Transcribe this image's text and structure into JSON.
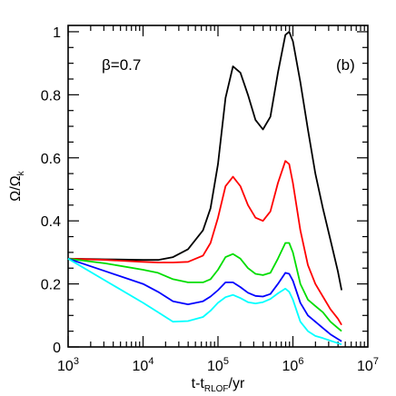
{
  "chart_data": {
    "type": "line",
    "title": "",
    "xlabel": "t-t_RLOF/yr",
    "ylabel": "Ω/Ω_k",
    "xscale": "log",
    "xlim": [
      1000,
      10000000
    ],
    "ylim": [
      0,
      1.02
    ],
    "annotations": [
      "β=0.7",
      "(b)"
    ],
    "grid": false,
    "x": [
      1000,
      3162,
      10000,
      15849,
      25119,
      39811,
      63096,
      79433,
      100000,
      125893,
      158489,
      199526,
      251189,
      316228,
      398107,
      501187,
      630957,
      794328,
      891251,
      1000000,
      1258925,
      1584893,
      1995262,
      2511886,
      3162278,
      3981072,
      4466836
    ],
    "series": [
      {
        "color": "#000000",
        "values": [
          0.28,
          0.278,
          0.276,
          0.276,
          0.285,
          0.31,
          0.37,
          0.44,
          0.58,
          0.79,
          0.89,
          0.87,
          0.8,
          0.72,
          0.69,
          0.73,
          0.87,
          0.99,
          1.0,
          0.97,
          0.84,
          0.69,
          0.55,
          0.44,
          0.34,
          0.24,
          0.18
        ]
      },
      {
        "color": "#ff0000",
        "values": [
          0.28,
          0.276,
          0.27,
          0.268,
          0.268,
          0.27,
          0.29,
          0.33,
          0.41,
          0.51,
          0.54,
          0.51,
          0.45,
          0.41,
          0.4,
          0.43,
          0.52,
          0.59,
          0.58,
          0.52,
          0.37,
          0.26,
          0.2,
          0.16,
          0.12,
          0.09,
          0.07
        ]
      },
      {
        "color": "#00dd00",
        "values": [
          0.28,
          0.265,
          0.245,
          0.235,
          0.215,
          0.205,
          0.205,
          0.215,
          0.245,
          0.285,
          0.295,
          0.28,
          0.25,
          0.232,
          0.228,
          0.235,
          0.28,
          0.33,
          0.33,
          0.3,
          0.2,
          0.15,
          0.13,
          0.11,
          0.08,
          0.06,
          0.05
        ]
      },
      {
        "color": "#0000ff",
        "values": [
          0.28,
          0.24,
          0.2,
          0.175,
          0.145,
          0.135,
          0.145,
          0.16,
          0.18,
          0.205,
          0.205,
          0.19,
          0.172,
          0.162,
          0.16,
          0.168,
          0.2,
          0.235,
          0.232,
          0.21,
          0.14,
          0.1,
          0.08,
          0.06,
          0.04,
          0.025,
          0.018
        ]
      },
      {
        "color": "#00ffff",
        "values": [
          0.28,
          0.21,
          0.14,
          0.11,
          0.08,
          0.082,
          0.095,
          0.115,
          0.14,
          0.158,
          0.165,
          0.155,
          0.142,
          0.138,
          0.142,
          0.152,
          0.17,
          0.185,
          0.175,
          0.15,
          0.08,
          0.05,
          0.035,
          0.028,
          0.02,
          0.012,
          0.008
        ]
      }
    ],
    "xticks": [
      1000,
      10000,
      100000,
      1000000,
      10000000
    ],
    "xtick_labels": [
      {
        "base": "10",
        "exp": "3"
      },
      {
        "base": "10",
        "exp": "4"
      },
      {
        "base": "10",
        "exp": "5"
      },
      {
        "base": "10",
        "exp": "6"
      },
      {
        "base": "10",
        "exp": "7"
      }
    ],
    "yticks": [
      0,
      0.2,
      0.4,
      0.6,
      0.8,
      1
    ],
    "ytick_labels": [
      "0",
      "0.2",
      "0.4",
      "0.6",
      "0.8",
      "1"
    ]
  }
}
